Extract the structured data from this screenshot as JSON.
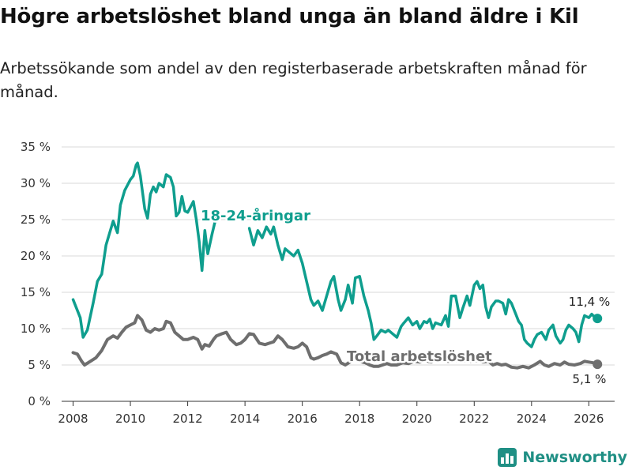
{
  "header": {
    "title": "Högre arbetslöshet bland unga än bland äldre i Kil",
    "subtitle": "Arbetssökande som andel av den registerbaserade arbetskraften månad för månad."
  },
  "brand": {
    "name": "Newsworthy"
  },
  "chart_data": {
    "type": "line",
    "title": "Högre arbetslöshet bland unga än bland äldre i Kil",
    "xlabel": "",
    "ylabel": "",
    "xlim": [
      2007.6,
      2026.9
    ],
    "ylim": [
      0,
      35
    ],
    "x_ticks": [
      2008,
      2010,
      2012,
      2014,
      2016,
      2018,
      2020,
      2022,
      2024,
      2026
    ],
    "x_tick_labels": [
      "2008",
      "2010",
      "2012",
      "2014",
      "2016",
      "2018",
      "2020",
      "2022",
      "2024",
      "2026"
    ],
    "y_ticks": [
      0,
      5,
      10,
      15,
      20,
      25,
      30,
      35
    ],
    "y_tick_labels": [
      "0 %",
      "5 %",
      "10 %",
      "15 %",
      "20 %",
      "25 %",
      "30 %",
      "35 %"
    ],
    "grid": "horizontal",
    "series": [
      {
        "name": "18-24-åringar",
        "label": "18-24-åringar",
        "color": "#0f9e8e",
        "end_label": "11,4 %",
        "points": [
          [
            2008.0,
            14.0
          ],
          [
            2008.25,
            11.5
          ],
          [
            2008.35,
            8.8
          ],
          [
            2008.5,
            9.8
          ],
          [
            2008.7,
            13.5
          ],
          [
            2008.85,
            16.5
          ],
          [
            2009.0,
            17.5
          ],
          [
            2009.15,
            21.5
          ],
          [
            2009.3,
            23.5
          ],
          [
            2009.4,
            24.8
          ],
          [
            2009.55,
            23.2
          ],
          [
            2009.65,
            27.0
          ],
          [
            2009.8,
            29.0
          ],
          [
            2010.0,
            30.5
          ],
          [
            2010.1,
            31.0
          ],
          [
            2010.2,
            32.5
          ],
          [
            2010.25,
            32.8
          ],
          [
            2010.35,
            31.0
          ],
          [
            2010.5,
            26.5
          ],
          [
            2010.6,
            25.2
          ],
          [
            2010.7,
            28.5
          ],
          [
            2010.8,
            29.5
          ],
          [
            2010.9,
            28.8
          ],
          [
            2011.0,
            30.0
          ],
          [
            2011.15,
            29.5
          ],
          [
            2011.25,
            31.2
          ],
          [
            2011.4,
            30.8
          ],
          [
            2011.5,
            29.5
          ],
          [
            2011.6,
            25.5
          ],
          [
            2011.7,
            26.0
          ],
          [
            2011.8,
            28.2
          ],
          [
            2011.9,
            26.2
          ],
          [
            2012.0,
            26.0
          ],
          [
            2012.2,
            27.5
          ],
          [
            2012.3,
            25.0
          ],
          [
            2012.4,
            22.0
          ],
          [
            2012.5,
            18.0
          ],
          [
            2012.6,
            23.5
          ],
          [
            2012.7,
            20.3
          ],
          [
            2012.85,
            23.0
          ],
          [
            2013.0,
            25.5
          ]
        ],
        "points_b": [
          [
            2014.15,
            23.8
          ],
          [
            2014.3,
            21.5
          ],
          [
            2014.45,
            23.5
          ],
          [
            2014.6,
            22.5
          ],
          [
            2014.75,
            24.0
          ],
          [
            2014.9,
            23.0
          ],
          [
            2015.0,
            24.0
          ],
          [
            2015.15,
            21.5
          ],
          [
            2015.3,
            19.5
          ],
          [
            2015.4,
            21.0
          ],
          [
            2015.55,
            20.5
          ],
          [
            2015.7,
            20.0
          ],
          [
            2015.85,
            20.8
          ],
          [
            2016.0,
            19.0
          ],
          [
            2016.15,
            16.5
          ],
          [
            2016.3,
            14.0
          ],
          [
            2016.4,
            13.2
          ],
          [
            2016.55,
            13.8
          ],
          [
            2016.7,
            12.5
          ],
          [
            2016.85,
            14.5
          ],
          [
            2017.0,
            16.5
          ],
          [
            2017.1,
            17.2
          ],
          [
            2017.25,
            14.0
          ],
          [
            2017.35,
            12.5
          ],
          [
            2017.5,
            14.0
          ],
          [
            2017.6,
            16.0
          ],
          [
            2017.75,
            13.5
          ],
          [
            2017.85,
            17.0
          ],
          [
            2018.0,
            17.2
          ],
          [
            2018.15,
            14.5
          ],
          [
            2018.3,
            12.5
          ],
          [
            2018.4,
            10.8
          ],
          [
            2018.5,
            8.5
          ],
          [
            2018.6,
            9.0
          ],
          [
            2018.75,
            9.8
          ],
          [
            2018.9,
            9.5
          ],
          [
            2019.0,
            9.8
          ],
          [
            2019.15,
            9.3
          ],
          [
            2019.3,
            8.8
          ],
          [
            2019.45,
            10.3
          ],
          [
            2019.55,
            10.8
          ],
          [
            2019.7,
            11.5
          ],
          [
            2019.85,
            10.5
          ],
          [
            2020.0,
            11.0
          ],
          [
            2020.1,
            10.0
          ],
          [
            2020.25,
            11.0
          ],
          [
            2020.35,
            10.8
          ],
          [
            2020.45,
            11.3
          ],
          [
            2020.55,
            10.0
          ],
          [
            2020.65,
            10.8
          ],
          [
            2020.85,
            10.5
          ],
          [
            2021.0,
            11.8
          ],
          [
            2021.1,
            10.3
          ],
          [
            2021.2,
            14.5
          ],
          [
            2021.35,
            14.5
          ],
          [
            2021.5,
            11.5
          ],
          [
            2021.6,
            12.8
          ],
          [
            2021.75,
            14.5
          ],
          [
            2021.85,
            13.2
          ],
          [
            2022.0,
            16.0
          ],
          [
            2022.1,
            16.5
          ],
          [
            2022.2,
            15.5
          ],
          [
            2022.3,
            16.0
          ],
          [
            2022.4,
            13.0
          ],
          [
            2022.5,
            11.5
          ],
          [
            2022.6,
            13.0
          ],
          [
            2022.75,
            13.8
          ],
          [
            2022.85,
            13.8
          ],
          [
            2023.0,
            13.5
          ],
          [
            2023.1,
            12.0
          ],
          [
            2023.2,
            14.0
          ],
          [
            2023.3,
            13.5
          ],
          [
            2023.45,
            12.0
          ],
          [
            2023.55,
            11.0
          ],
          [
            2023.65,
            10.5
          ],
          [
            2023.75,
            8.5
          ],
          [
            2023.85,
            8.0
          ],
          [
            2024.0,
            7.5
          ],
          [
            2024.1,
            8.5
          ],
          [
            2024.2,
            9.2
          ],
          [
            2024.35,
            9.5
          ],
          [
            2024.5,
            8.5
          ],
          [
            2024.6,
            9.8
          ],
          [
            2024.75,
            10.5
          ],
          [
            2024.85,
            9.0
          ],
          [
            2025.0,
            8.0
          ],
          [
            2025.1,
            8.5
          ],
          [
            2025.2,
            9.8
          ],
          [
            2025.3,
            10.5
          ],
          [
            2025.45,
            10.0
          ],
          [
            2025.55,
            9.5
          ],
          [
            2025.65,
            8.2
          ],
          [
            2025.75,
            10.5
          ],
          [
            2025.85,
            11.8
          ],
          [
            2026.0,
            11.5
          ],
          [
            2026.1,
            12.0
          ],
          [
            2026.2,
            11.6
          ],
          [
            2026.3,
            11.4
          ]
        ]
      },
      {
        "name": "Total arbetslöshet",
        "label": "Total arbetslöshet",
        "color": "#6e6e6e",
        "end_label": "5,1 %",
        "points": [
          [
            2008.0,
            6.7
          ],
          [
            2008.15,
            6.5
          ],
          [
            2008.3,
            5.5
          ],
          [
            2008.4,
            5.0
          ],
          [
            2008.6,
            5.5
          ],
          [
            2008.8,
            6.0
          ],
          [
            2009.0,
            7.0
          ],
          [
            2009.2,
            8.5
          ],
          [
            2009.4,
            9.0
          ],
          [
            2009.55,
            8.7
          ],
          [
            2009.7,
            9.5
          ],
          [
            2009.85,
            10.2
          ],
          [
            2010.0,
            10.5
          ],
          [
            2010.15,
            10.8
          ],
          [
            2010.25,
            11.8
          ],
          [
            2010.4,
            11.2
          ],
          [
            2010.55,
            9.8
          ],
          [
            2010.7,
            9.5
          ],
          [
            2010.85,
            10.0
          ],
          [
            2011.0,
            9.8
          ],
          [
            2011.15,
            10.0
          ],
          [
            2011.25,
            11.0
          ],
          [
            2011.4,
            10.8
          ],
          [
            2011.55,
            9.5
          ],
          [
            2011.7,
            9.0
          ],
          [
            2011.85,
            8.5
          ],
          [
            2012.0,
            8.5
          ],
          [
            2012.2,
            8.8
          ],
          [
            2012.35,
            8.5
          ],
          [
            2012.5,
            7.2
          ],
          [
            2012.6,
            7.8
          ],
          [
            2012.75,
            7.6
          ],
          [
            2012.9,
            8.5
          ],
          [
            2013.0,
            9.0
          ],
          [
            2013.2,
            9.3
          ],
          [
            2013.35,
            9.5
          ],
          [
            2013.5,
            8.5
          ],
          [
            2013.7,
            7.8
          ],
          [
            2013.85,
            8.0
          ],
          [
            2014.0,
            8.5
          ],
          [
            2014.15,
            9.3
          ],
          [
            2014.3,
            9.2
          ],
          [
            2014.5,
            8.0
          ],
          [
            2014.7,
            7.8
          ],
          [
            2014.85,
            8.0
          ],
          [
            2015.0,
            8.2
          ],
          [
            2015.15,
            9.0
          ],
          [
            2015.3,
            8.5
          ],
          [
            2015.5,
            7.5
          ],
          [
            2015.7,
            7.3
          ],
          [
            2015.85,
            7.5
          ],
          [
            2016.0,
            8.0
          ],
          [
            2016.15,
            7.5
          ],
          [
            2016.3,
            6.0
          ],
          [
            2016.4,
            5.8
          ],
          [
            2016.55,
            6.0
          ],
          [
            2016.7,
            6.3
          ],
          [
            2016.85,
            6.5
          ],
          [
            2017.0,
            6.8
          ],
          [
            2017.2,
            6.5
          ],
          [
            2017.35,
            5.3
          ],
          [
            2017.5,
            5.0
          ],
          [
            2017.7,
            5.5
          ],
          [
            2017.85,
            5.8
          ],
          [
            2018.0,
            5.5
          ],
          [
            2018.2,
            5.3
          ],
          [
            2018.35,
            5.0
          ],
          [
            2018.5,
            4.8
          ],
          [
            2018.65,
            4.8
          ],
          [
            2018.8,
            5.0
          ],
          [
            2018.95,
            5.2
          ],
          [
            2019.1,
            5.0
          ],
          [
            2019.3,
            5.0
          ],
          [
            2019.5,
            5.3
          ],
          [
            2019.7,
            5.2
          ],
          [
            2019.9,
            5.5
          ],
          [
            2020.1,
            5.4
          ],
          [
            2020.3,
            5.6
          ],
          [
            2020.5,
            5.4
          ],
          [
            2020.7,
            5.7
          ],
          [
            2020.9,
            5.6
          ],
          [
            2021.1,
            5.5
          ],
          [
            2021.3,
            5.7
          ],
          [
            2021.5,
            5.5
          ],
          [
            2021.7,
            5.6
          ],
          [
            2021.9,
            5.5
          ],
          [
            2022.1,
            5.6
          ],
          [
            2022.3,
            5.4
          ],
          [
            2022.5,
            5.5
          ],
          [
            2022.65,
            5.0
          ],
          [
            2022.8,
            5.2
          ],
          [
            2022.95,
            5.0
          ],
          [
            2023.1,
            5.1
          ],
          [
            2023.3,
            4.7
          ],
          [
            2023.5,
            4.6
          ],
          [
            2023.7,
            4.8
          ],
          [
            2023.9,
            4.6
          ],
          [
            2024.1,
            5.0
          ],
          [
            2024.3,
            5.5
          ],
          [
            2024.45,
            5.0
          ],
          [
            2024.6,
            4.8
          ],
          [
            2024.8,
            5.2
          ],
          [
            2025.0,
            5.0
          ],
          [
            2025.15,
            5.4
          ],
          [
            2025.3,
            5.1
          ],
          [
            2025.5,
            5.0
          ],
          [
            2025.7,
            5.2
          ],
          [
            2025.85,
            5.5
          ],
          [
            2026.0,
            5.4
          ],
          [
            2026.15,
            5.3
          ],
          [
            2026.3,
            5.1
          ]
        ]
      }
    ]
  }
}
